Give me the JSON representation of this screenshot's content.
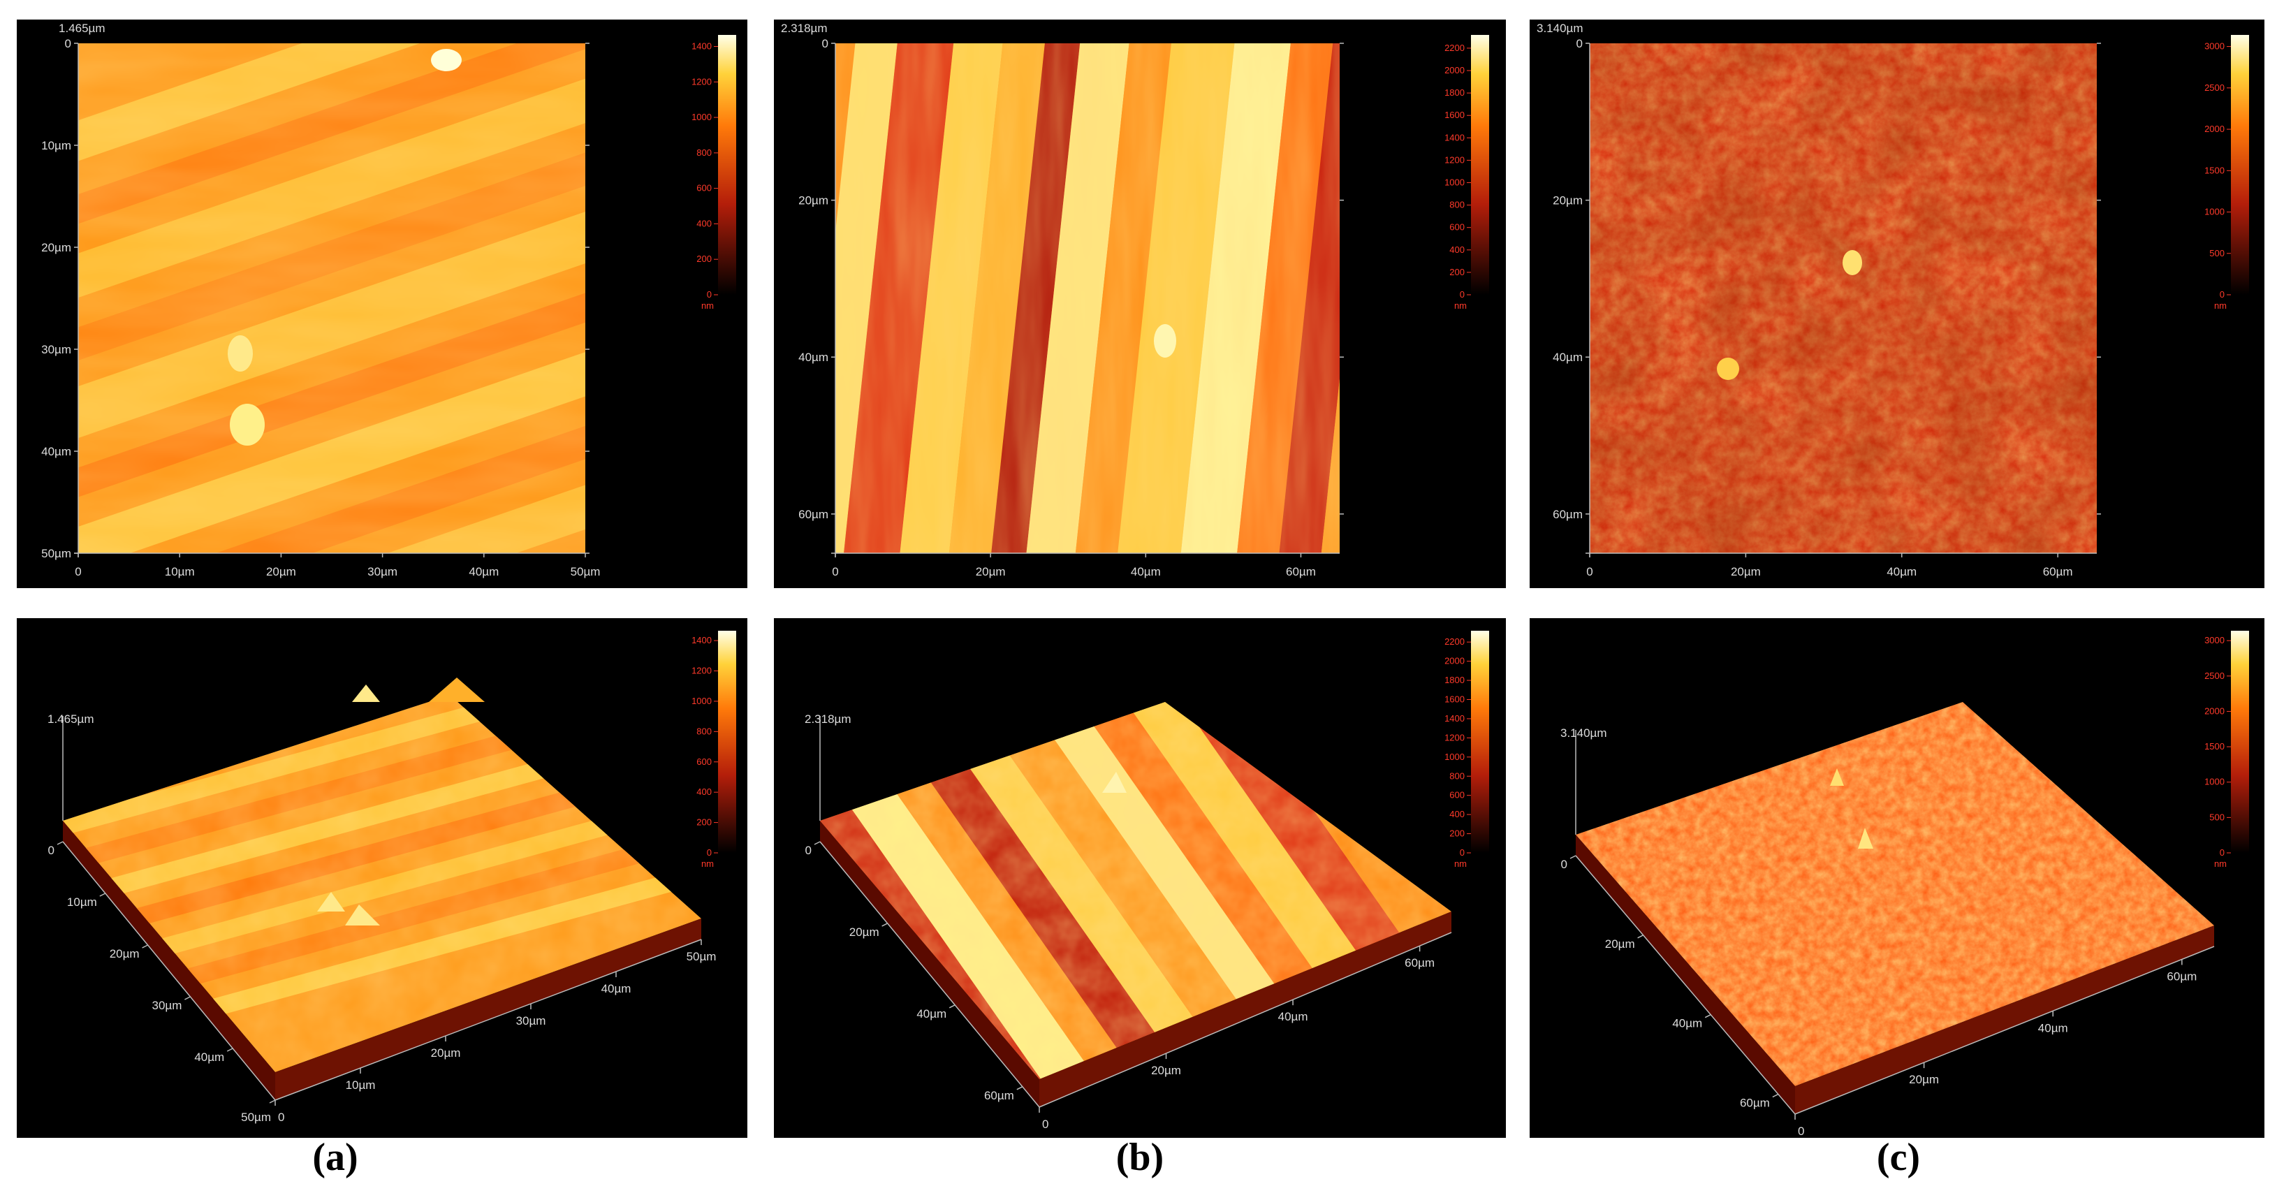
{
  "panels": [
    {
      "id": "a",
      "caption": "(a)",
      "height_label": "1.465µm",
      "colorbar": {
        "ticks": [
          "0",
          "200",
          "400",
          "600",
          "800",
          "1000",
          "1200",
          "1400"
        ],
        "max": 1465,
        "unit": "nm"
      },
      "map_x_ticks": [
        "0",
        "10µm",
        "20µm",
        "30µm",
        "40µm",
        "50µm"
      ],
      "map_y_ticks": [
        "0",
        "10µm",
        "20µm",
        "30µm",
        "40µm",
        "50µm"
      ],
      "x_max": 50,
      "view3d_x_ticks": [
        "0",
        "10µm",
        "20µm",
        "30µm",
        "40µm",
        "50µm"
      ],
      "view3d_y_ticks": [
        "0",
        "10µm",
        "20µm",
        "30µm",
        "40µm",
        "50µm"
      ],
      "view3d_corner_label": "50µm",
      "view3d_zero_label": "0",
      "palette": [
        "#ff7a0a",
        "#ffb21e",
        "#ffd84a"
      ],
      "texture": "stripes"
    },
    {
      "id": "b",
      "caption": "(b)",
      "height_label": "2.318µm",
      "colorbar": {
        "ticks": [
          "0",
          "200",
          "400",
          "600",
          "800",
          "1000",
          "1200",
          "1400",
          "1600",
          "1800",
          "2000",
          "2200"
        ],
        "max": 2318,
        "unit": "nm"
      },
      "map_x_ticks": [
        "0",
        "20µm",
        "40µm",
        "60µm"
      ],
      "map_y_ticks": [
        "0",
        "20µm",
        "40µm",
        "60µm"
      ],
      "x_max": 65,
      "view3d_x_ticks": [
        "0",
        "20µm",
        "40µm",
        "60µm"
      ],
      "view3d_y_ticks": [
        "0",
        "20µm",
        "40µm",
        "60µm"
      ],
      "view3d_corner_label": "",
      "view3d_zero_label": "0",
      "palette": [
        "#c4140a",
        "#ff8a12",
        "#fff06a"
      ],
      "texture": "vertical"
    },
    {
      "id": "c",
      "caption": "(c)",
      "height_label": "3.140µm",
      "colorbar": {
        "ticks": [
          "0",
          "500",
          "1000",
          "1500",
          "2000",
          "2500",
          "3000"
        ],
        "max": 3140,
        "unit": "nm"
      },
      "map_x_ticks": [
        "0",
        "20µm",
        "40µm",
        "60µm"
      ],
      "map_y_ticks": [
        "0",
        "20µm",
        "40µm",
        "60µm"
      ],
      "x_max": 65,
      "view3d_x_ticks": [
        "0",
        "20µm",
        "40µm",
        "60µm"
      ],
      "view3d_y_ticks": [
        "0",
        "20µm",
        "40µm",
        "60µm"
      ],
      "view3d_corner_label": "",
      "view3d_zero_label": "0",
      "palette": [
        "#d8200a",
        "#ff5a10",
        "#ffaa30"
      ],
      "texture": "grainy"
    }
  ]
}
